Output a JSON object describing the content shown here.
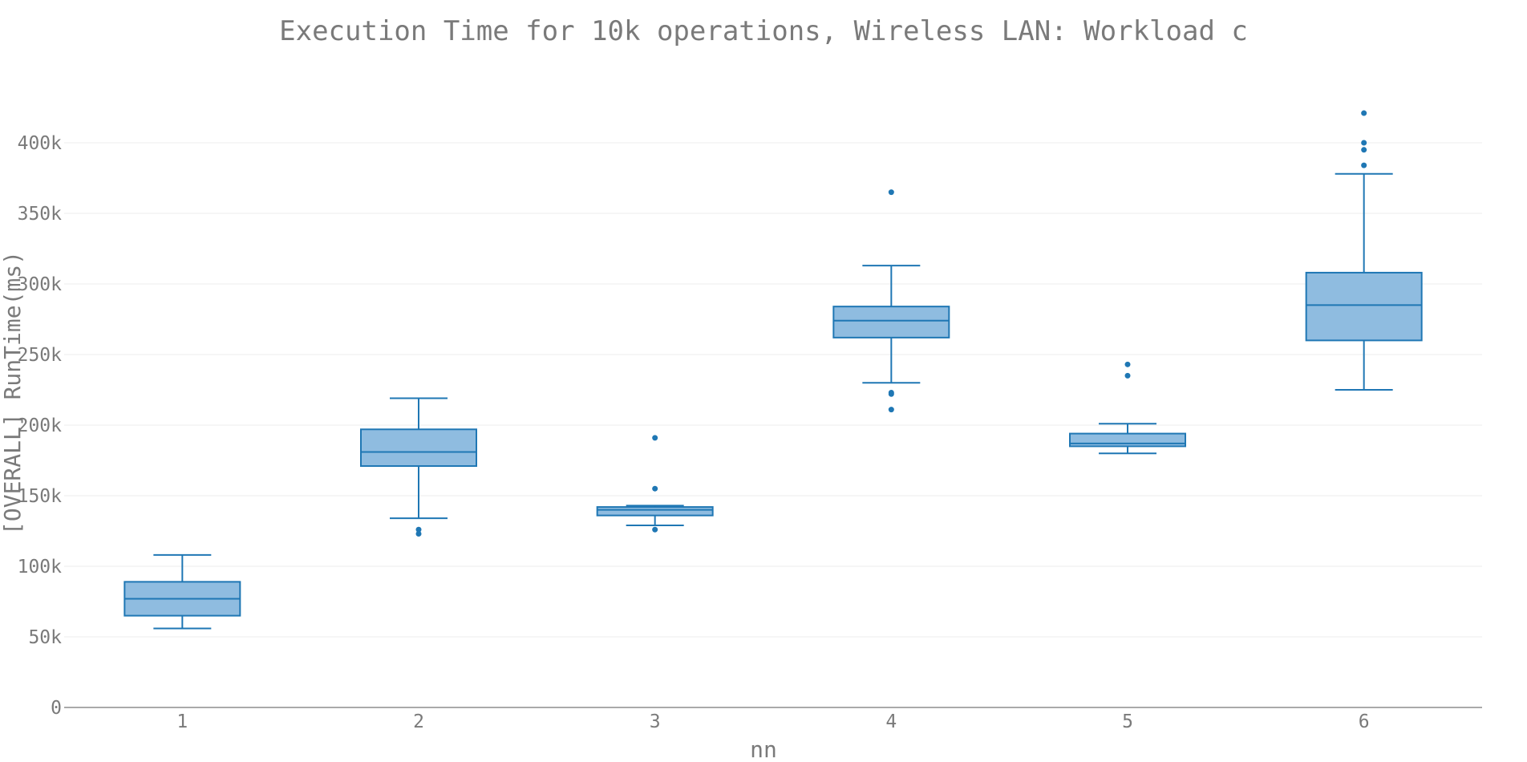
{
  "chart_data": {
    "type": "box",
    "title": "Execution Time for 10k operations, Wireless LAN: Workload c",
    "xlabel": "nn",
    "ylabel": "[OVERALL] RunTime(ms)",
    "ylim": [
      0,
      400000
    ],
    "yticks": [
      0,
      50000,
      100000,
      150000,
      200000,
      250000,
      300000,
      350000,
      400000
    ],
    "ytick_labels": [
      "0",
      "50k",
      "100k",
      "150k",
      "200k",
      "250k",
      "300k",
      "350k",
      "400k"
    ],
    "categories": [
      "1",
      "2",
      "3",
      "4",
      "5",
      "6"
    ],
    "color": "#1f77b4",
    "fill": "#8fbce0",
    "grid": true,
    "boxes": [
      {
        "category": "1",
        "lower_whisker": 56000,
        "q1": 65000,
        "median": 77000,
        "q3": 89000,
        "upper_whisker": 108000,
        "outliers": []
      },
      {
        "category": "2",
        "lower_whisker": 134000,
        "q1": 171000,
        "median": 181000,
        "q3": 197000,
        "upper_whisker": 219000,
        "outliers": [
          123000,
          126000
        ]
      },
      {
        "category": "3",
        "lower_whisker": 129000,
        "q1": 136000,
        "median": 140000,
        "q3": 142000,
        "upper_whisker": 143000,
        "outliers": [
          126000,
          155000,
          191000
        ]
      },
      {
        "category": "4",
        "lower_whisker": 230000,
        "q1": 262000,
        "median": 274000,
        "q3": 284000,
        "upper_whisker": 313000,
        "outliers": [
          211000,
          222000,
          223000,
          365000
        ]
      },
      {
        "category": "5",
        "lower_whisker": 180000,
        "q1": 185000,
        "median": 187000,
        "q3": 194000,
        "upper_whisker": 201000,
        "outliers": [
          235000,
          243000
        ]
      },
      {
        "category": "6",
        "lower_whisker": 225000,
        "q1": 260000,
        "median": 285000,
        "q3": 308000,
        "upper_whisker": 378000,
        "outliers": [
          384000,
          395000,
          400000,
          421000
        ]
      }
    ]
  }
}
